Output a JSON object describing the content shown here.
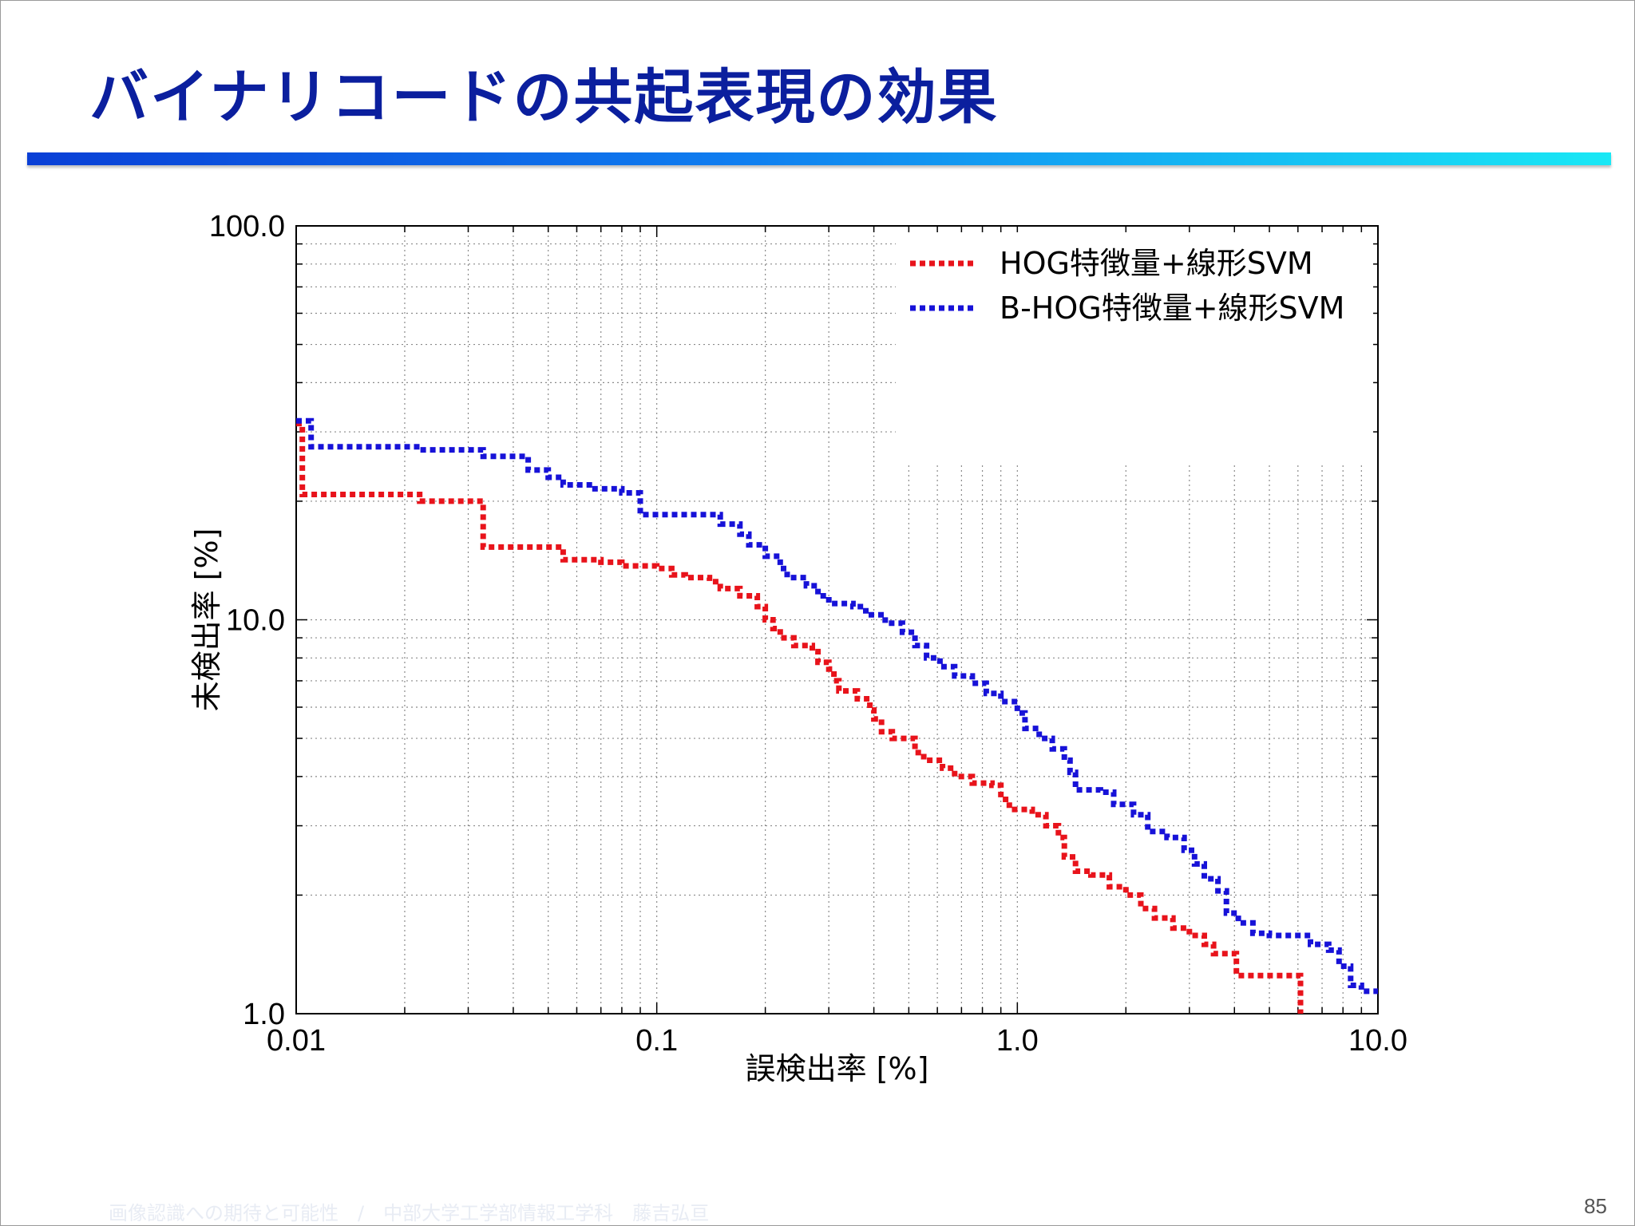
{
  "slide": {
    "title": "バイナリコードの共起表現の効果",
    "footer": "画像認識への期待と可能性　/　中部大学工学部情報工学科　藤吉弘亘",
    "page_number": "85"
  },
  "chart_data": {
    "type": "line",
    "title": "",
    "xlabel": "誤検出率 [%]",
    "ylabel": "未検出率 [%]",
    "xscale": "log",
    "yscale": "log",
    "xlim": [
      0.01,
      10.0
    ],
    "ylim": [
      1.0,
      100.0
    ],
    "x_tick_labels": [
      "0.01",
      "0.1",
      "1.0",
      "10.0"
    ],
    "y_tick_labels": [
      "1.0",
      "10.0",
      "100.0"
    ],
    "grid": true,
    "legend_position": "top-right",
    "series": [
      {
        "name": "HOG特徴量+線形SVM",
        "color": "#e8131b",
        "style": "dotted-step",
        "points": [
          [
            0.01,
            31.5
          ],
          [
            0.0104,
            24.5
          ],
          [
            0.0104,
            20.8
          ],
          [
            0.021,
            20.8
          ],
          [
            0.022,
            20.0
          ],
          [
            0.032,
            20.0
          ],
          [
            0.033,
            15.3
          ],
          [
            0.055,
            15.3
          ],
          [
            0.055,
            14.2
          ],
          [
            0.07,
            14.0
          ],
          [
            0.08,
            13.7
          ],
          [
            0.1,
            13.5
          ],
          [
            0.11,
            13.0
          ],
          [
            0.12,
            12.8
          ],
          [
            0.14,
            12.5
          ],
          [
            0.15,
            12.0
          ],
          [
            0.17,
            11.5
          ],
          [
            0.19,
            10.8
          ],
          [
            0.2,
            10.0
          ],
          [
            0.21,
            9.5
          ],
          [
            0.22,
            9.0
          ],
          [
            0.24,
            8.6
          ],
          [
            0.27,
            8.3
          ],
          [
            0.28,
            7.8
          ],
          [
            0.3,
            7.5
          ],
          [
            0.31,
            7.0
          ],
          [
            0.32,
            6.6
          ],
          [
            0.36,
            6.3
          ],
          [
            0.39,
            5.9
          ],
          [
            0.4,
            5.6
          ],
          [
            0.42,
            5.2
          ],
          [
            0.45,
            5.0
          ],
          [
            0.5,
            5.0
          ],
          [
            0.52,
            4.6
          ],
          [
            0.55,
            4.4
          ],
          [
            0.62,
            4.2
          ],
          [
            0.67,
            4.0
          ],
          [
            0.75,
            3.85
          ],
          [
            0.85,
            3.8
          ],
          [
            0.9,
            3.5
          ],
          [
            0.95,
            3.3
          ],
          [
            1.0,
            3.3
          ],
          [
            1.1,
            3.2
          ],
          [
            1.2,
            3.0
          ],
          [
            1.3,
            2.8
          ],
          [
            1.35,
            2.5
          ],
          [
            1.45,
            2.3
          ],
          [
            1.6,
            2.25
          ],
          [
            1.8,
            2.1
          ],
          [
            2.0,
            2.0
          ],
          [
            2.2,
            1.85
          ],
          [
            2.4,
            1.75
          ],
          [
            2.7,
            1.65
          ],
          [
            3.0,
            1.58
          ],
          [
            3.3,
            1.5
          ],
          [
            3.5,
            1.42
          ],
          [
            4.0,
            1.42
          ],
          [
            4.05,
            1.25
          ],
          [
            6.0,
            1.25
          ],
          [
            6.1,
            1.0
          ]
        ]
      },
      {
        "name": "B-HOG特徴量+線形SVM",
        "color": "#1712d8",
        "style": "dotted-step",
        "points": [
          [
            0.01,
            32.0
          ],
          [
            0.011,
            32.0
          ],
          [
            0.011,
            27.5
          ],
          [
            0.02,
            27.5
          ],
          [
            0.022,
            27.0
          ],
          [
            0.03,
            27.0
          ],
          [
            0.033,
            26.0
          ],
          [
            0.04,
            26.0
          ],
          [
            0.044,
            24.0
          ],
          [
            0.05,
            23.0
          ],
          [
            0.055,
            22.0
          ],
          [
            0.065,
            21.5
          ],
          [
            0.08,
            21.0
          ],
          [
            0.09,
            21.0
          ],
          [
            0.09,
            18.5
          ],
          [
            0.13,
            18.5
          ],
          [
            0.15,
            17.5
          ],
          [
            0.17,
            16.5
          ],
          [
            0.18,
            15.5
          ],
          [
            0.2,
            14.5
          ],
          [
            0.22,
            13.5
          ],
          [
            0.23,
            12.8
          ],
          [
            0.26,
            12.2
          ],
          [
            0.28,
            11.5
          ],
          [
            0.3,
            11.0
          ],
          [
            0.35,
            10.8
          ],
          [
            0.38,
            10.3
          ],
          [
            0.43,
            9.8
          ],
          [
            0.48,
            9.3
          ],
          [
            0.52,
            8.6
          ],
          [
            0.56,
            8.0
          ],
          [
            0.61,
            7.6
          ],
          [
            0.67,
            7.2
          ],
          [
            0.75,
            6.9
          ],
          [
            0.82,
            6.5
          ],
          [
            0.9,
            6.2
          ],
          [
            1.0,
            5.8
          ],
          [
            1.05,
            5.3
          ],
          [
            1.15,
            5.0
          ],
          [
            1.25,
            4.7
          ],
          [
            1.35,
            4.4
          ],
          [
            1.4,
            4.1
          ],
          [
            1.45,
            3.7
          ],
          [
            1.7,
            3.65
          ],
          [
            1.85,
            3.4
          ],
          [
            2.1,
            3.2
          ],
          [
            2.3,
            2.9
          ],
          [
            2.6,
            2.8
          ],
          [
            2.9,
            2.6
          ],
          [
            3.1,
            2.4
          ],
          [
            3.3,
            2.2
          ],
          [
            3.6,
            2.05
          ],
          [
            3.8,
            1.8
          ],
          [
            4.1,
            1.7
          ],
          [
            4.5,
            1.6
          ],
          [
            5.0,
            1.58
          ],
          [
            6.0,
            1.58
          ],
          [
            6.5,
            1.5
          ],
          [
            7.3,
            1.45
          ],
          [
            7.8,
            1.32
          ],
          [
            8.4,
            1.18
          ],
          [
            9.0,
            1.14
          ],
          [
            10.0,
            1.14
          ]
        ]
      }
    ]
  }
}
